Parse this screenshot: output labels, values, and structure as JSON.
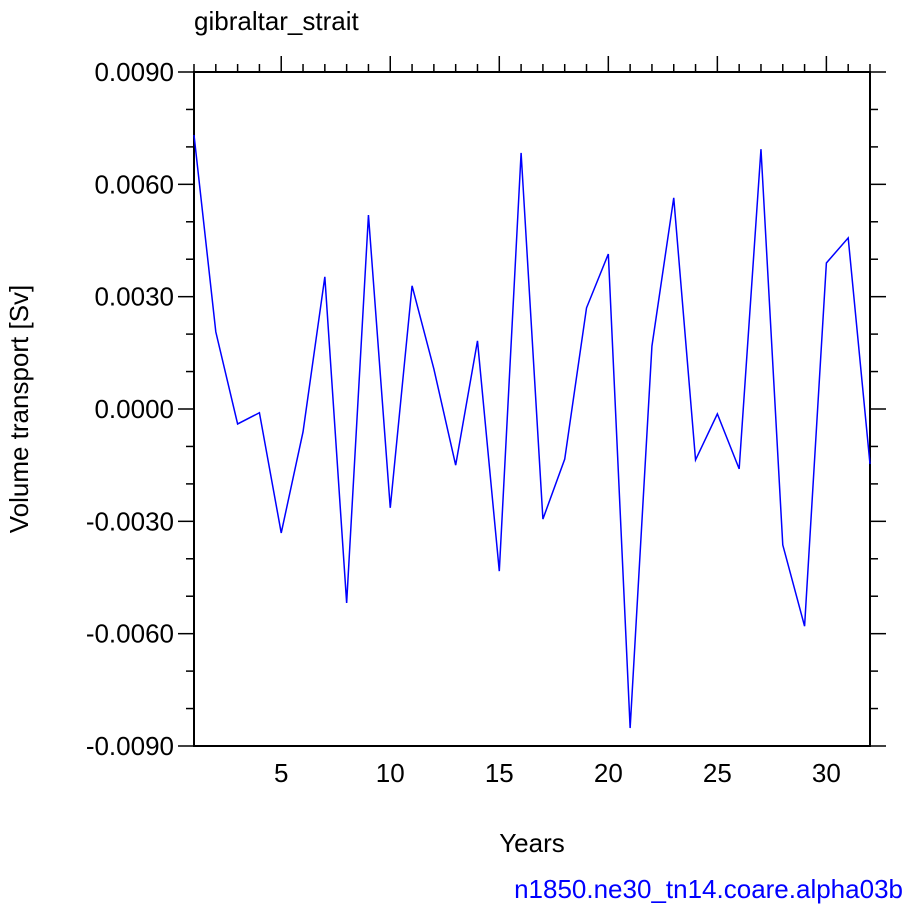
{
  "chart_data": {
    "type": "line",
    "title": "gibraltar_strait",
    "subtitle": "n1850.ne30_tn14.coare.alpha03b",
    "xlabel": "Years",
    "ylabel": "Volume transport [Sv]",
    "x": [
      1,
      2,
      3,
      4,
      5,
      6,
      7,
      8,
      9,
      10,
      11,
      12,
      13,
      14,
      15,
      16,
      17,
      18,
      19,
      20,
      21,
      22,
      23,
      24,
      25,
      26,
      27,
      28,
      29,
      30,
      31,
      32
    ],
    "series": [
      {
        "color": "#0000ff",
        "values": [
          0.00732,
          0.00206,
          -0.0004,
          -0.0001,
          -0.00331,
          -0.00061,
          0.00353,
          -0.00518,
          0.00518,
          -0.00264,
          0.00329,
          0.00107,
          -0.0015,
          0.00182,
          -0.00433,
          0.00684,
          -0.00294,
          -0.00134,
          0.0027,
          0.00414,
          -0.00852,
          0.00168,
          0.00564,
          -0.00136,
          -0.00013,
          -0.0016,
          0.00694,
          -0.00363,
          -0.0058,
          0.0039,
          0.00457,
          -0.00147
        ]
      }
    ],
    "xlim": [
      1,
      32
    ],
    "xticks": [
      5,
      10,
      15,
      20,
      25,
      30
    ],
    "xminorticks": [
      1,
      2,
      3,
      4,
      6,
      7,
      8,
      9,
      11,
      12,
      13,
      14,
      16,
      17,
      18,
      19,
      21,
      22,
      23,
      24,
      26,
      27,
      28,
      29,
      31,
      32
    ],
    "ylim": [
      -0.009,
      0.009
    ],
    "yticks": [
      {
        "value": -0.009,
        "label": "-0.0090"
      },
      {
        "value": -0.006,
        "label": "-0.0060"
      },
      {
        "value": -0.003,
        "label": "-0.0030"
      },
      {
        "value": 0,
        "label": "0.0000"
      },
      {
        "value": 0.003,
        "label": "0.0030"
      },
      {
        "value": 0.006,
        "label": "0.0060"
      },
      {
        "value": 0.009,
        "label": "0.0090"
      }
    ],
    "yminorticks": [
      -0.008,
      -0.007,
      -0.005,
      -0.004,
      -0.002,
      -0.001,
      0.001,
      0.002,
      0.004,
      0.005,
      0.007,
      0.008
    ]
  }
}
